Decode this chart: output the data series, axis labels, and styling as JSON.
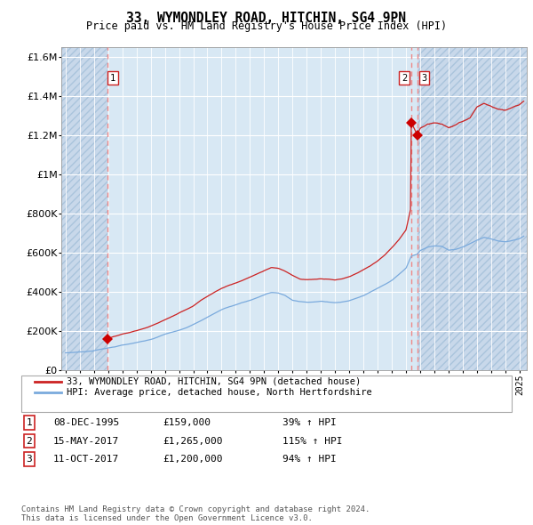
{
  "title": "33, WYMONDLEY ROAD, HITCHIN, SG4 9PN",
  "subtitle": "Price paid vs. HM Land Registry's House Price Index (HPI)",
  "hpi_color": "#7aaadd",
  "price_color": "#cc2222",
  "sale_marker_color": "#cc0000",
  "dashed_line_color": "#ee8888",
  "bg_color": "#d8e8f4",
  "grid_color": "#ffffff",
  "ylim": [
    0,
    1650000
  ],
  "yticks": [
    0,
    200000,
    400000,
    600000,
    800000,
    1000000,
    1200000,
    1400000,
    1600000
  ],
  "xlim_start": 1992.7,
  "xlim_end": 2025.5,
  "sale1_x": 1995.94,
  "sale1_y": 159000,
  "sale2_x": 2017.37,
  "sale2_y": 1265000,
  "sale3_x": 2017.79,
  "sale3_y": 1200000,
  "legend_price_label": "33, WYMONDLEY ROAD, HITCHIN, SG4 9PN (detached house)",
  "legend_hpi_label": "HPI: Average price, detached house, North Hertfordshire",
  "table_rows": [
    {
      "num": "1",
      "date": "08-DEC-1995",
      "price": "£159,000",
      "hpi": "39% ↑ HPI"
    },
    {
      "num": "2",
      "date": "15-MAY-2017",
      "price": "£1,265,000",
      "hpi": "115% ↑ HPI"
    },
    {
      "num": "3",
      "date": "11-OCT-2017",
      "price": "£1,200,000",
      "hpi": "94% ↑ HPI"
    }
  ],
  "footer": "Contains HM Land Registry data © Crown copyright and database right 2024.\nThis data is licensed under the Open Government Licence v3.0.",
  "hatch_left_end": 1995.94,
  "hatch_right_start": 2017.79
}
